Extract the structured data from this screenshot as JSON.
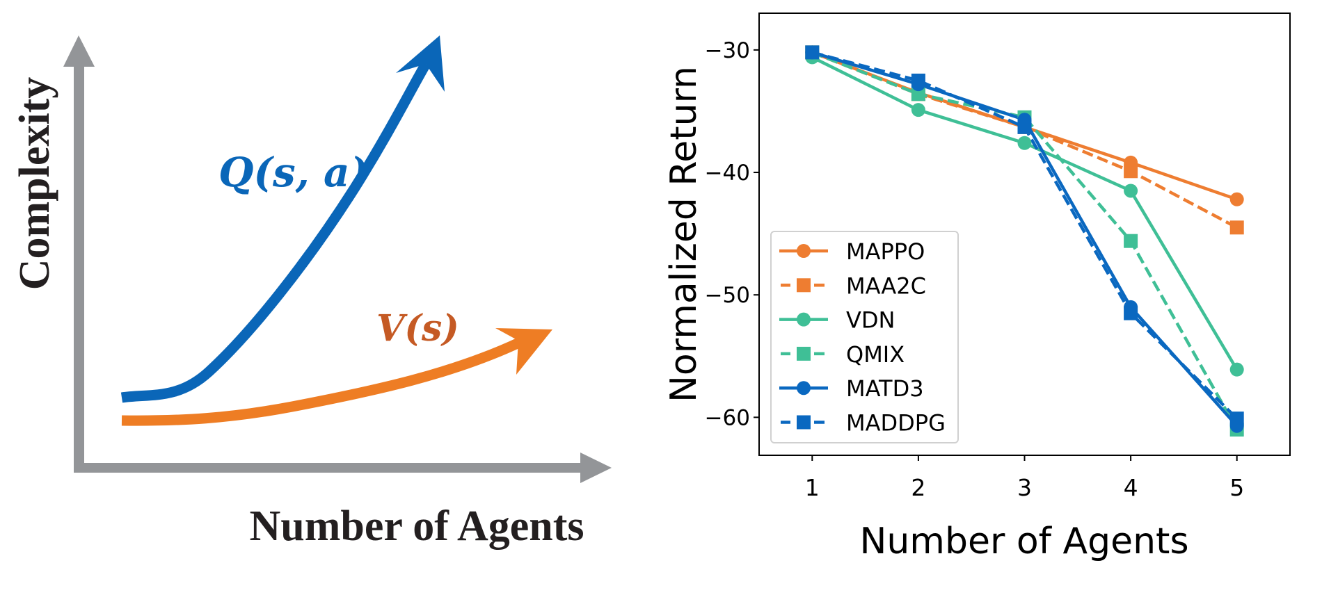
{
  "diagram": {
    "y_axis_label": "Complexity",
    "x_axis_label": "Number of Agents",
    "curves": [
      {
        "name": "q-curve",
        "label": "Q(s, a)",
        "color": "#0a66b8",
        "label_color": "#0a66b8",
        "growth": "steep"
      },
      {
        "name": "v-curve",
        "label": "V(s)",
        "color": "#ee7d24",
        "label_color": "#c55a24",
        "growth": "gradual"
      }
    ],
    "axis_color": "#939598"
  },
  "chart_data": {
    "type": "line",
    "title": "",
    "xlabel": "Number of Agents",
    "ylabel": "Normalized Return",
    "x": [
      1,
      2,
      3,
      4,
      5
    ],
    "xticks": [
      "1",
      "2",
      "3",
      "4",
      "5"
    ],
    "yticks": [
      -30,
      -40,
      -50,
      -60
    ],
    "ytick_labels": [
      "−30",
      "−40",
      "−50",
      "−60"
    ],
    "xlim": [
      0.5,
      5.5
    ],
    "ylim": [
      -63.1,
      -27.0
    ],
    "grid": false,
    "legend_position": "lower-left",
    "series": [
      {
        "name": "MAPPO",
        "color": "#ee7d31",
        "marker": "circle",
        "linestyle": "solid",
        "values": [
          -30.2,
          -33.5,
          -36.3,
          -39.2,
          -42.2
        ]
      },
      {
        "name": "MAA2C",
        "color": "#ee7d31",
        "marker": "square",
        "linestyle": "dashed",
        "values": [
          -30.2,
          -33.6,
          -36.3,
          -39.9,
          -44.5
        ]
      },
      {
        "name": "VDN",
        "color": "#3fbf96",
        "marker": "circle",
        "linestyle": "solid",
        "values": [
          -30.6,
          -34.9,
          -37.6,
          -41.5,
          -56.1
        ]
      },
      {
        "name": "QMIX",
        "color": "#3fbf96",
        "marker": "square",
        "linestyle": "dashed",
        "values": [
          -30.2,
          -33.6,
          -35.5,
          -45.6,
          -61.0
        ]
      },
      {
        "name": "MATD3",
        "color": "#0a68c0",
        "marker": "circle",
        "linestyle": "solid",
        "values": [
          -30.2,
          -32.8,
          -35.7,
          -51.0,
          -60.7
        ]
      },
      {
        "name": "MADDPG",
        "color": "#0a68c0",
        "marker": "square",
        "linestyle": "dashed",
        "values": [
          -30.2,
          -32.5,
          -36.3,
          -51.5,
          -60.1
        ]
      }
    ]
  }
}
